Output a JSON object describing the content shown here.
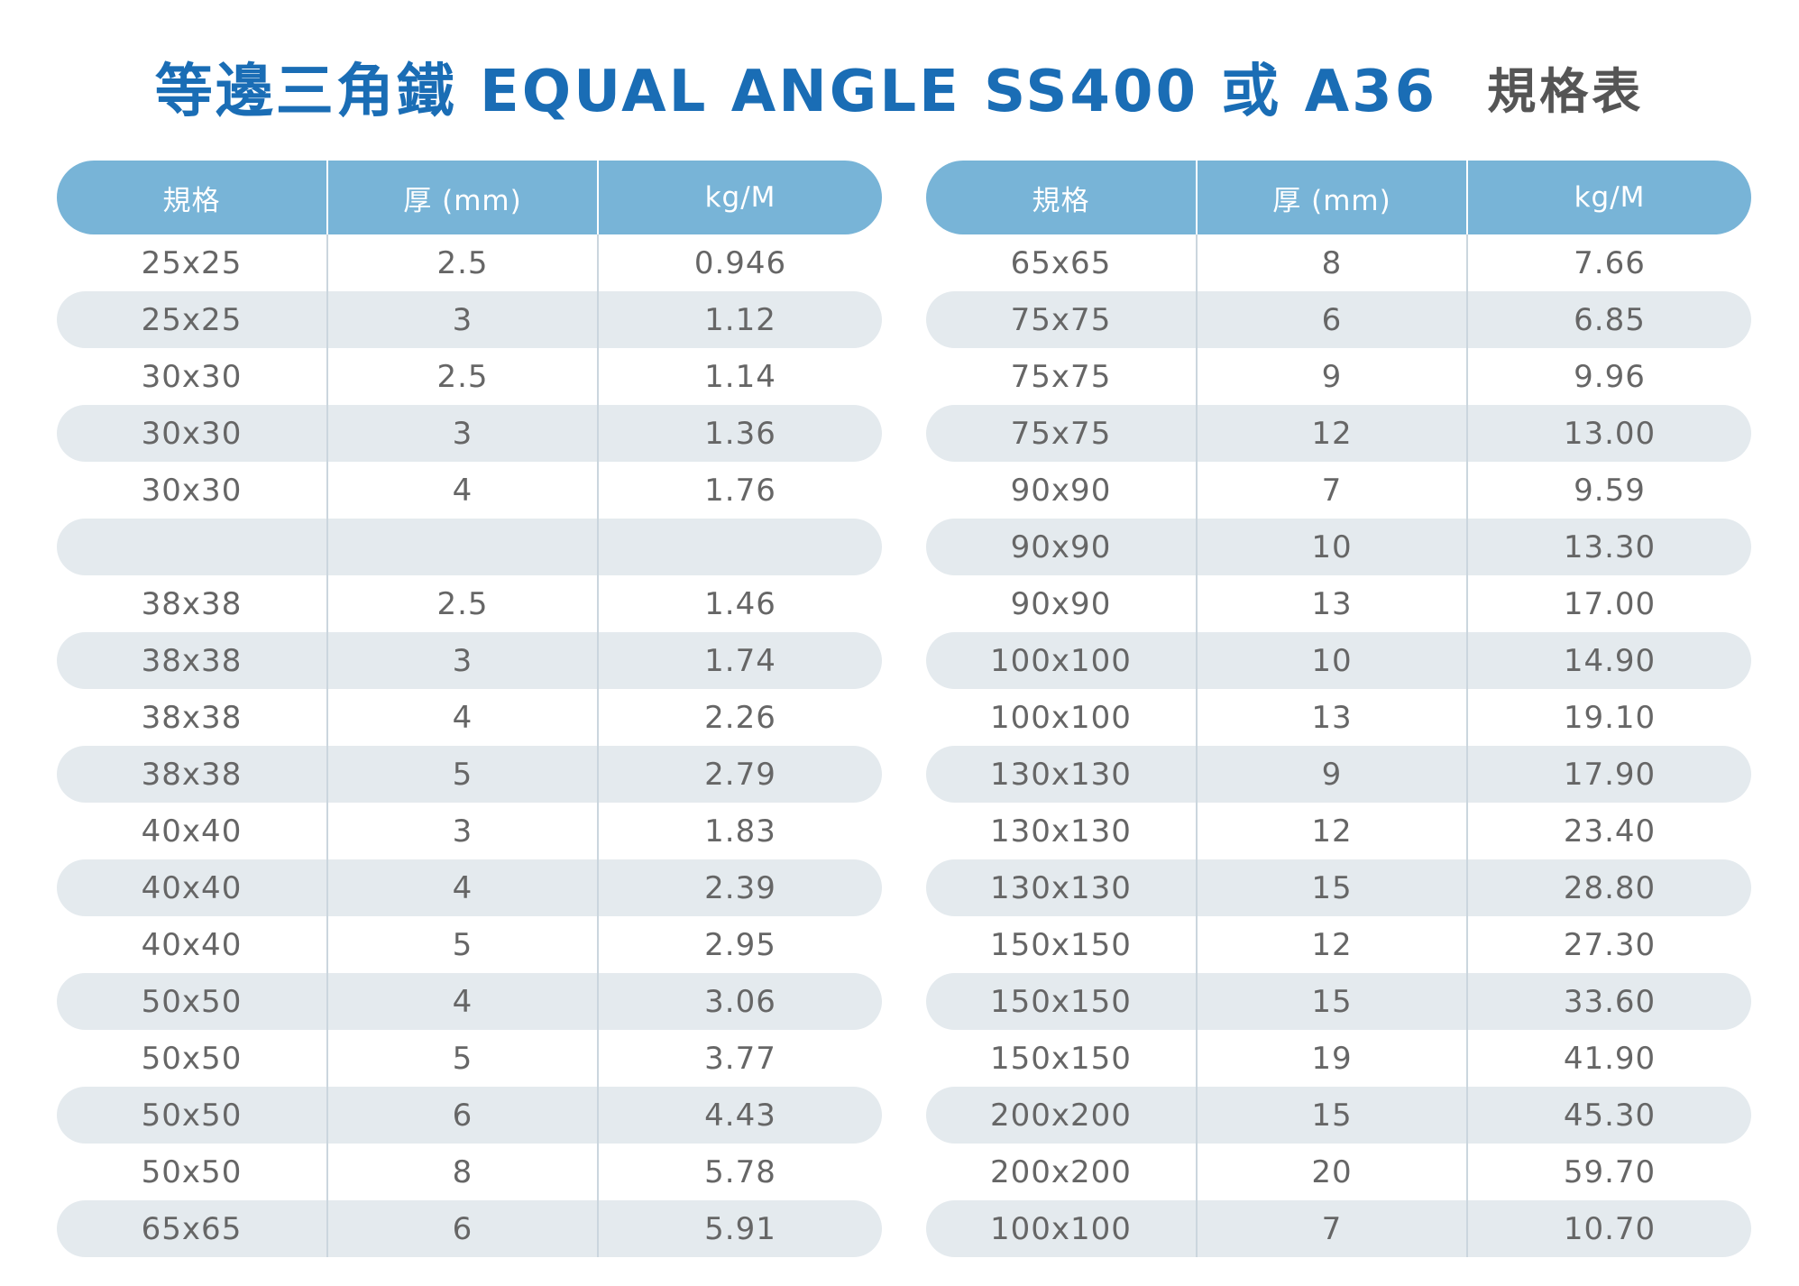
{
  "title": {
    "main": "等邊三角鐵 EQUAL ANGLE SS400 或 A36",
    "sub": "規格表"
  },
  "colors": {
    "title_blue": "#1a6db5",
    "header_blue": "#78b4d7",
    "stripe_gray": "#e4eaee",
    "text_gray": "#666666"
  },
  "tables": [
    {
      "headers": [
        "規格",
        "厚 (mm)",
        "kg/M"
      ],
      "rows": [
        [
          "25x25",
          "2.5",
          "0.946"
        ],
        [
          "25x25",
          "3",
          "1.12"
        ],
        [
          "30x30",
          "2.5",
          "1.14"
        ],
        [
          "30x30",
          "3",
          "1.36"
        ],
        [
          "30x30",
          "4",
          "1.76"
        ],
        [
          "",
          "",
          ""
        ],
        [
          "38x38",
          "2.5",
          "1.46"
        ],
        [
          "38x38",
          "3",
          "1.74"
        ],
        [
          "38x38",
          "4",
          "2.26"
        ],
        [
          "38x38",
          "5",
          "2.79"
        ],
        [
          "40x40",
          "3",
          "1.83"
        ],
        [
          "40x40",
          "4",
          "2.39"
        ],
        [
          "40x40",
          "5",
          "2.95"
        ],
        [
          "50x50",
          "4",
          "3.06"
        ],
        [
          "50x50",
          "5",
          "3.77"
        ],
        [
          "50x50",
          "6",
          "4.43"
        ],
        [
          "50x50",
          "8",
          "5.78"
        ],
        [
          "65x65",
          "6",
          "5.91"
        ]
      ]
    },
    {
      "headers": [
        "規格",
        "厚 (mm)",
        "kg/M"
      ],
      "rows": [
        [
          "65x65",
          "8",
          "7.66"
        ],
        [
          "75x75",
          "6",
          "6.85"
        ],
        [
          "75x75",
          "9",
          "9.96"
        ],
        [
          "75x75",
          "12",
          "13.00"
        ],
        [
          "90x90",
          "7",
          "9.59"
        ],
        [
          "90x90",
          "10",
          "13.30"
        ],
        [
          "90x90",
          "13",
          "17.00"
        ],
        [
          "100x100",
          "10",
          "14.90"
        ],
        [
          "100x100",
          "13",
          "19.10"
        ],
        [
          "130x130",
          "9",
          "17.90"
        ],
        [
          "130x130",
          "12",
          "23.40"
        ],
        [
          "130x130",
          "15",
          "28.80"
        ],
        [
          "150x150",
          "12",
          "27.30"
        ],
        [
          "150x150",
          "15",
          "33.60"
        ],
        [
          "150x150",
          "19",
          "41.90"
        ],
        [
          "200x200",
          "15",
          "45.30"
        ],
        [
          "200x200",
          "20",
          "59.70"
        ],
        [
          "100x100",
          "7",
          "10.70"
        ]
      ]
    }
  ]
}
